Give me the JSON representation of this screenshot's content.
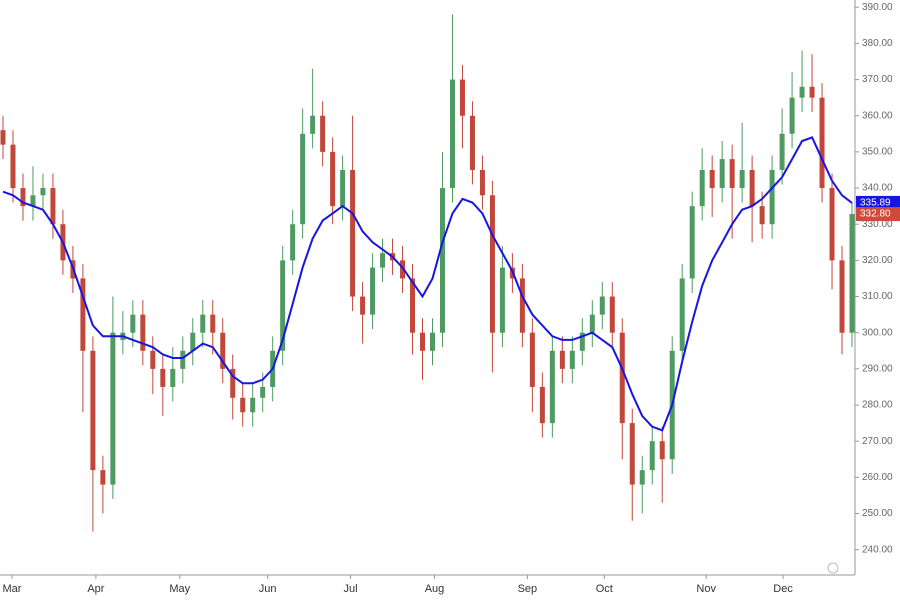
{
  "chart_data": {
    "type": "candlestick",
    "open": [
      356,
      352,
      340,
      335,
      338,
      340,
      330,
      320,
      315,
      295,
      262,
      258,
      298,
      300,
      305,
      295,
      290,
      285,
      290,
      295,
      300,
      305,
      300,
      290,
      282,
      278,
      282,
      285,
      295,
      320,
      330,
      355,
      360,
      350,
      335,
      345,
      310,
      305,
      318,
      322,
      320,
      315,
      300,
      295,
      300,
      340,
      370,
      360,
      345,
      338,
      300,
      318,
      315,
      300,
      285,
      275,
      295,
      290,
      295,
      300,
      305,
      310,
      300,
      275,
      258,
      262,
      270,
      265,
      295,
      315,
      335,
      345,
      340,
      348,
      340,
      345,
      335,
      330,
      345,
      355,
      365,
      368,
      365,
      340,
      320,
      300
    ],
    "high": [
      360,
      356,
      344,
      346,
      344,
      344,
      334,
      324,
      319,
      299,
      266,
      310,
      306,
      309,
      309,
      299,
      294,
      296,
      299,
      304,
      309,
      309,
      304,
      294,
      286,
      286,
      289,
      299,
      324,
      334,
      362,
      373,
      364,
      354,
      349,
      360,
      314,
      322,
      326,
      326,
      324,
      319,
      304,
      304,
      350,
      388,
      374,
      364,
      349,
      342,
      324,
      322,
      319,
      304,
      289,
      299,
      299,
      299,
      304,
      309,
      314,
      314,
      304,
      279,
      266,
      274,
      274,
      299,
      319,
      339,
      351,
      349,
      353,
      352,
      358,
      349,
      339,
      349,
      362,
      372,
      378,
      377,
      369,
      344,
      324,
      336
    ],
    "low": [
      348,
      336,
      331,
      331,
      334,
      326,
      316,
      311,
      278,
      245,
      250,
      254,
      294,
      296,
      291,
      283,
      277,
      281,
      286,
      291,
      296,
      294,
      286,
      276,
      274,
      274,
      278,
      281,
      291,
      316,
      326,
      351,
      346,
      330,
      331,
      306,
      297,
      301,
      314,
      316,
      311,
      294,
      287,
      291,
      296,
      336,
      351,
      341,
      334,
      289,
      296,
      311,
      296,
      278,
      271,
      271,
      286,
      286,
      291,
      296,
      301,
      296,
      265,
      248,
      250,
      258,
      253,
      261,
      291,
      311,
      331,
      332,
      336,
      326,
      336,
      325,
      326,
      326,
      341,
      351,
      361,
      361,
      336,
      312,
      294,
      296
    ],
    "close": [
      352,
      340,
      335,
      338,
      340,
      330,
      320,
      315,
      295,
      262,
      258,
      300,
      300,
      305,
      295,
      290,
      285,
      290,
      295,
      300,
      305,
      300,
      290,
      282,
      278,
      282,
      285,
      295,
      320,
      330,
      355,
      360,
      350,
      335,
      345,
      310,
      305,
      318,
      322,
      320,
      315,
      300,
      295,
      300,
      340,
      370,
      360,
      345,
      338,
      300,
      318,
      315,
      300,
      285,
      275,
      295,
      290,
      295,
      300,
      305,
      310,
      300,
      275,
      258,
      262,
      270,
      265,
      295,
      315,
      335,
      345,
      340,
      348,
      340,
      345,
      335,
      330,
      345,
      355,
      365,
      368,
      365,
      340,
      320,
      300,
      332.8
    ],
    "up_color": "#4f9a62",
    "down_color": "#c2473b",
    "moving_average": {
      "color": "#1616e0",
      "values": [
        339,
        338,
        336,
        335,
        334,
        330,
        325,
        318,
        310,
        302,
        299,
        299,
        299,
        298,
        297,
        296,
        294,
        293,
        293,
        295,
        297,
        296,
        292,
        288,
        286,
        286,
        287,
        290,
        298,
        308,
        318,
        326,
        331,
        333,
        335,
        333,
        328,
        325,
        323,
        321,
        318,
        314,
        310,
        315,
        325,
        333,
        337,
        336,
        333,
        327,
        322,
        317,
        310,
        305,
        302,
        299,
        298,
        298,
        299,
        300,
        298,
        296,
        290,
        283,
        277,
        274,
        273,
        280,
        292,
        303,
        313,
        320,
        325,
        330,
        334,
        335,
        337,
        340,
        343,
        348,
        353,
        354,
        348,
        342,
        338,
        335.89
      ]
    },
    "current_labels": [
      {
        "value": 335.89,
        "color": "#1616e0"
      },
      {
        "value": 332.8,
        "label": "332.80",
        "color": "#d04a3c"
      }
    ],
    "xlim": [
      -0.3,
      85.3
    ],
    "xticks": [
      {
        "value": 0.9,
        "label": "Mar"
      },
      {
        "value": 9.3,
        "label": "Apr"
      },
      {
        "value": 17.7,
        "label": "May"
      },
      {
        "value": 26.5,
        "label": "Jun"
      },
      {
        "value": 34.8,
        "label": "Jul"
      },
      {
        "value": 43.2,
        "label": "Aug"
      },
      {
        "value": 52.5,
        "label": "Sep"
      },
      {
        "value": 60.2,
        "label": "Oct"
      },
      {
        "value": 70.4,
        "label": "Nov"
      },
      {
        "value": 78.1,
        "label": "Dec"
      }
    ],
    "ylim": [
      233,
      392
    ],
    "yticks": [
      {
        "value": 240,
        "label": "240.00"
      },
      {
        "value": 250,
        "label": "250.00"
      },
      {
        "value": 260,
        "label": "260.00"
      },
      {
        "value": 270,
        "label": "270.00"
      },
      {
        "value": 280,
        "label": "280.00"
      },
      {
        "value": 290,
        "label": "290.00"
      },
      {
        "value": 300,
        "label": "300.00"
      },
      {
        "value": 310,
        "label": "310.00"
      },
      {
        "value": 320,
        "label": "320.00"
      },
      {
        "value": 330,
        "label": "330.00"
      },
      {
        "value": 340,
        "label": "340.00"
      },
      {
        "value": 350,
        "label": "350.00"
      },
      {
        "value": 360,
        "label": "360.00"
      },
      {
        "value": 370,
        "label": "370.00"
      },
      {
        "value": 380,
        "label": "380.00"
      },
      {
        "value": 390,
        "label": "390.00"
      }
    ]
  }
}
